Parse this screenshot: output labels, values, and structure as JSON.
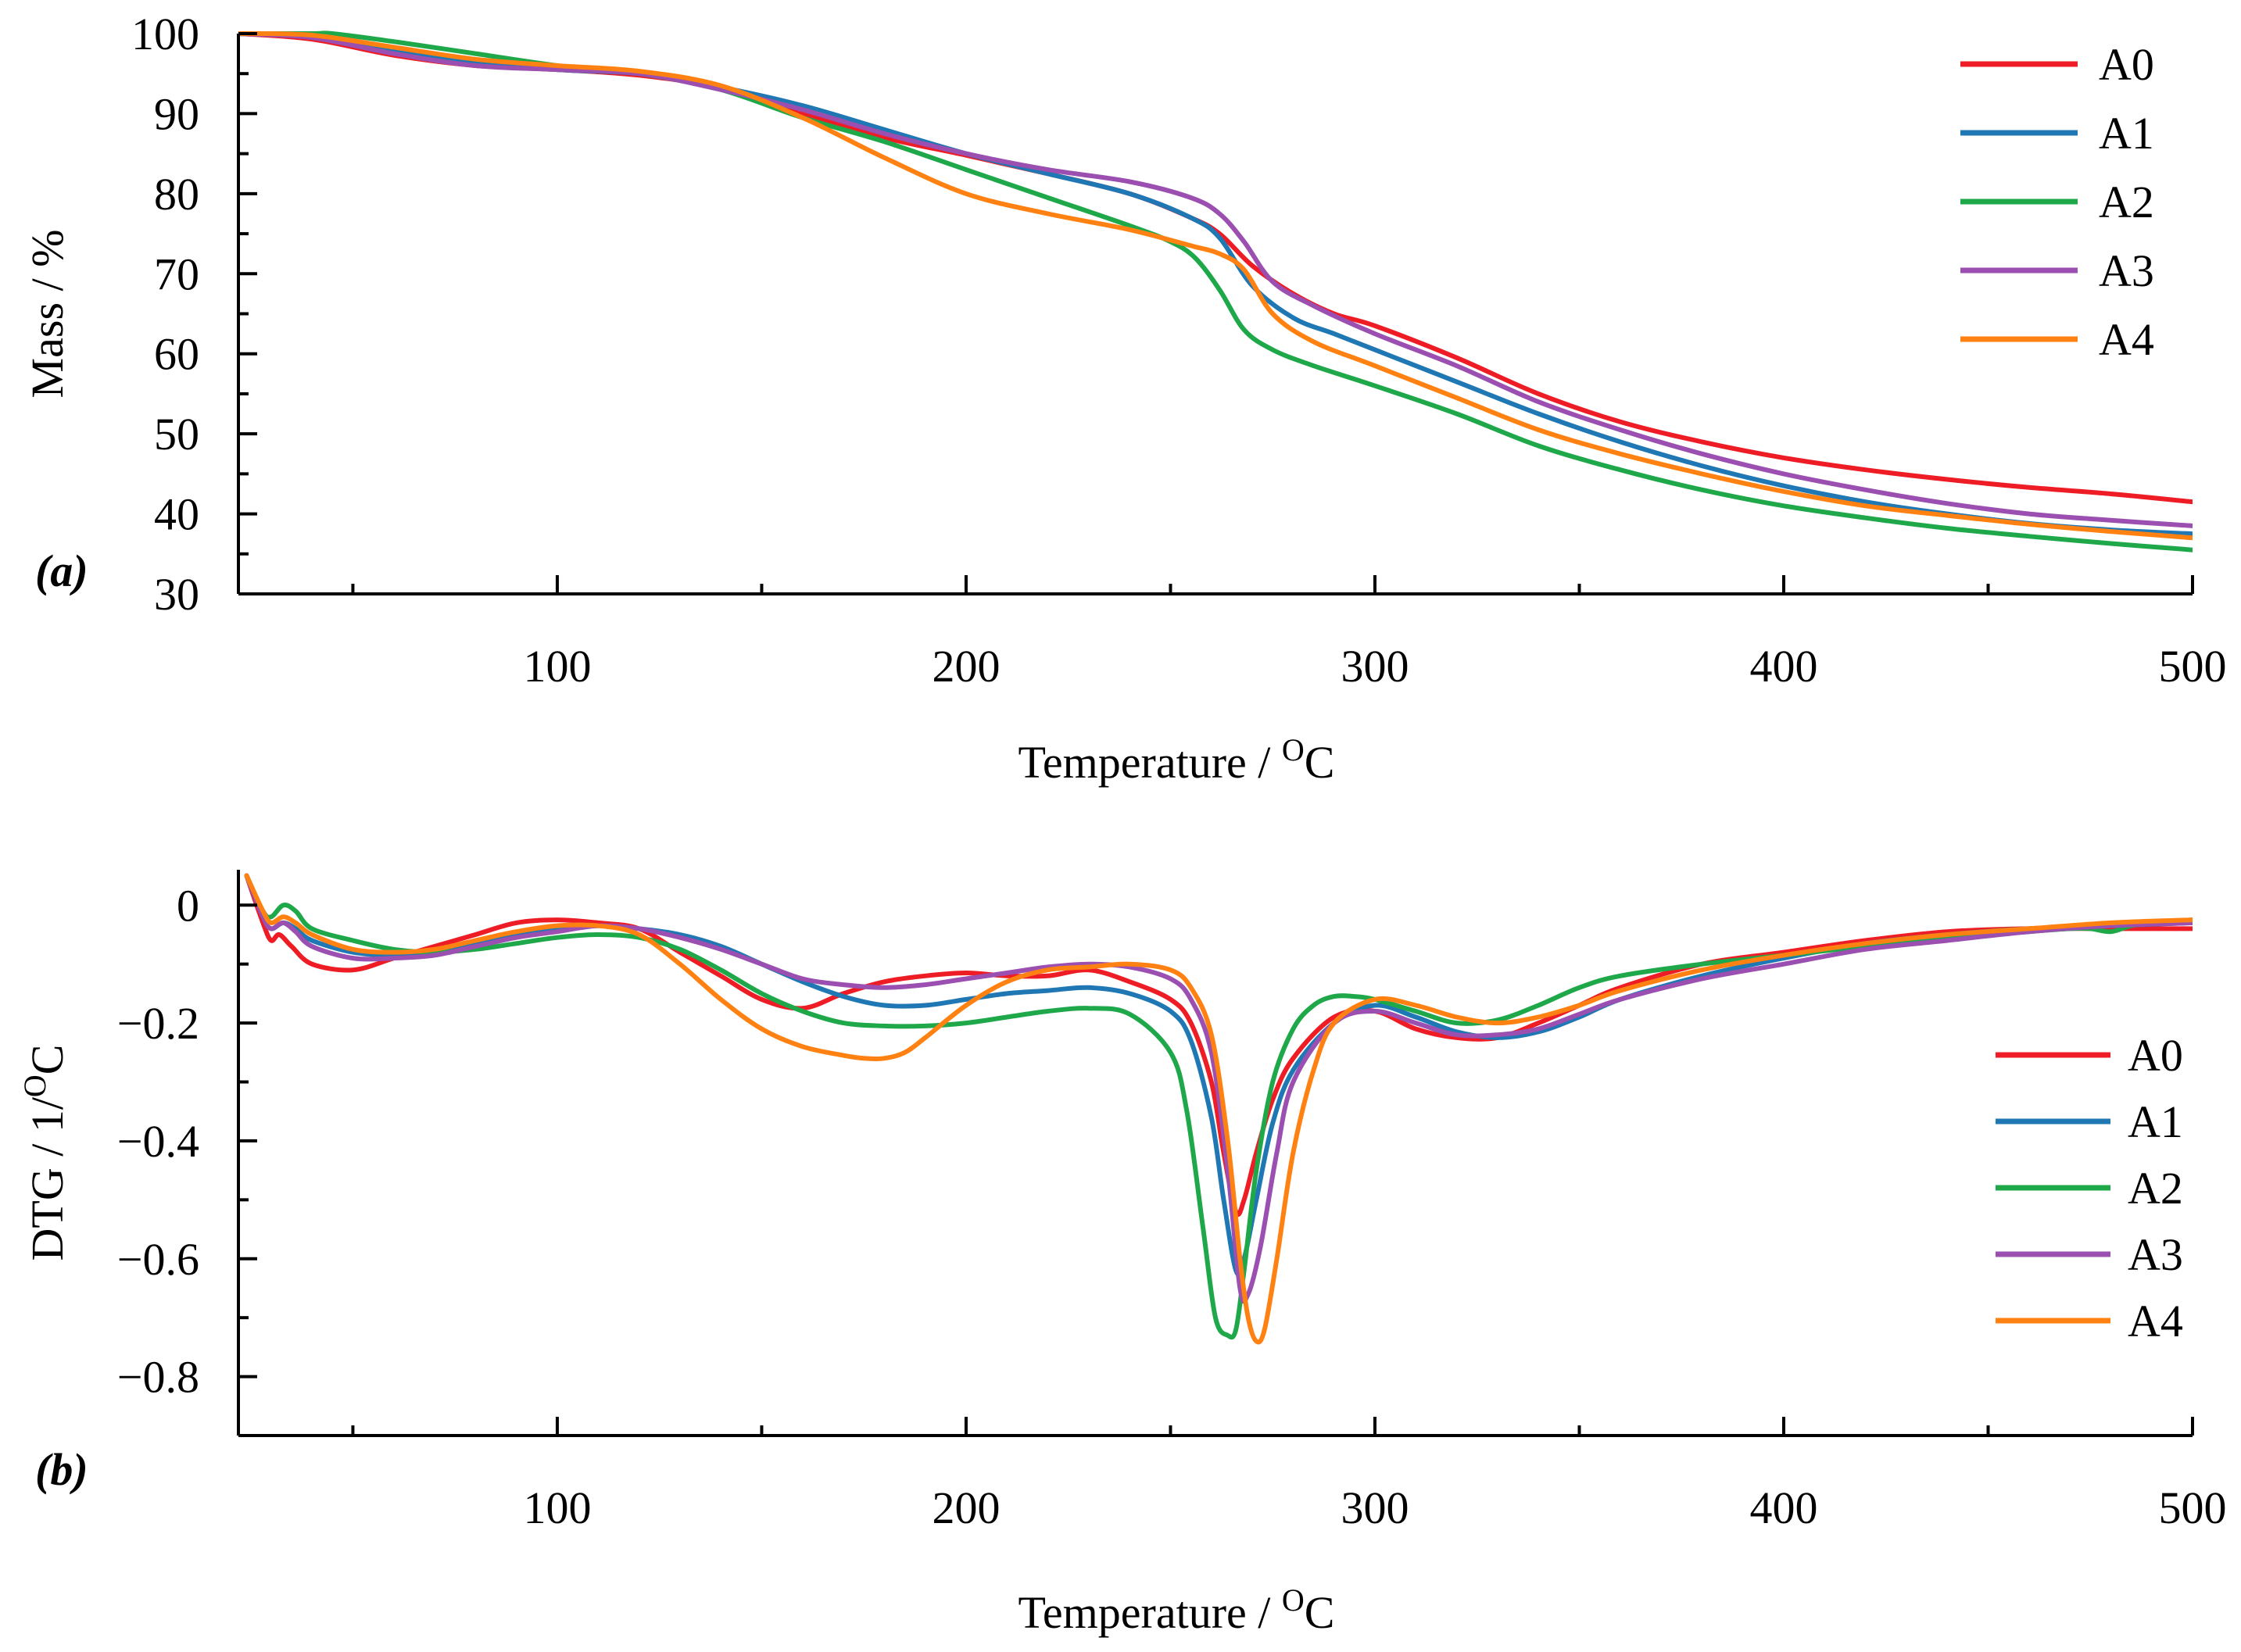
{
  "colors": {
    "A0": "#ee1c25",
    "A1": "#1f77b4",
    "A2": "#1fa84a",
    "A3": "#9b4fb0",
    "A4": "#ff8112"
  },
  "chart_data": [
    {
      "type": "line",
      "panel_label": "(a)",
      "xlabel": "Temperature / ",
      "xlabel_sup": "O",
      "xlabel_unit": "C",
      "ylabel": "Mass / %",
      "xlim": [
        22,
        500
      ],
      "ylim": [
        30,
        100
      ],
      "xticks": [
        100,
        200,
        300,
        400,
        500
      ],
      "xminor": [
        50,
        150,
        250,
        350,
        450
      ],
      "yticks": [
        30,
        40,
        50,
        60,
        70,
        80,
        90,
        100
      ],
      "ytick_labels": [
        "30",
        "40",
        "50",
        "60",
        "70",
        "80",
        "90",
        "100"
      ],
      "yminor": [
        35,
        45,
        55,
        65,
        75,
        85,
        95
      ],
      "legend": "top-right",
      "series": [
        {
          "name": "A0",
          "x": [
            22,
            40,
            60,
            80,
            100,
            120,
            140,
            160,
            180,
            200,
            220,
            240,
            255,
            262,
            270,
            280,
            290,
            300,
            320,
            340,
            360,
            380,
            400,
            420,
            440,
            460,
            480,
            500
          ],
          "y": [
            100,
            99.3,
            97.3,
            96,
            95.5,
            94.8,
            93.2,
            90,
            87,
            84.8,
            82.5,
            80,
            77,
            75,
            71,
            67.5,
            65,
            63.5,
            59.5,
            55,
            51.5,
            49,
            47,
            45.5,
            44.3,
            43.3,
            42.5,
            41.5
          ]
        },
        {
          "name": "A1",
          "x": [
            22,
            40,
            60,
            80,
            100,
            120,
            140,
            160,
            180,
            200,
            220,
            240,
            255,
            262,
            270,
            280,
            290,
            300,
            320,
            340,
            360,
            380,
            400,
            420,
            440,
            460,
            480,
            500
          ],
          "y": [
            100,
            99.6,
            98,
            96.5,
            95.5,
            95,
            93.3,
            91,
            88,
            85,
            82.5,
            80,
            77,
            74.5,
            68.5,
            64.5,
            62.5,
            60.5,
            56.5,
            52.5,
            49,
            46,
            43.5,
            41.5,
            40,
            38.8,
            38,
            37.5
          ]
        },
        {
          "name": "A2",
          "x": [
            22,
            40,
            45,
            60,
            80,
            100,
            120,
            140,
            160,
            180,
            200,
            220,
            240,
            250,
            256,
            262,
            268,
            275,
            285,
            300,
            320,
            340,
            360,
            380,
            400,
            420,
            440,
            460,
            480,
            500
          ],
          "y": [
            100,
            100,
            100,
            99,
            97.5,
            96,
            95,
            93,
            89.5,
            86.5,
            83,
            79.5,
            76,
            74,
            72,
            68,
            63,
            60.5,
            58.5,
            56,
            52.5,
            48.5,
            45.5,
            43,
            41,
            39.5,
            38.2,
            37.2,
            36.3,
            35.5
          ]
        },
        {
          "name": "A3",
          "x": [
            22,
            40,
            60,
            80,
            100,
            120,
            140,
            160,
            180,
            200,
            220,
            240,
            255,
            262,
            268,
            275,
            285,
            300,
            320,
            340,
            360,
            380,
            400,
            420,
            440,
            460,
            480,
            500
          ],
          "y": [
            100,
            99.5,
            97.5,
            96,
            95.5,
            95,
            93,
            90.5,
            87.5,
            85,
            83,
            81.5,
            79.5,
            77.5,
            74,
            69,
            66,
            62.5,
            58.5,
            54,
            50.5,
            47.5,
            45,
            43,
            41.3,
            40,
            39.2,
            38.5
          ]
        },
        {
          "name": "A4",
          "x": [
            22,
            40,
            60,
            80,
            100,
            120,
            140,
            160,
            180,
            200,
            220,
            240,
            255,
            262,
            268,
            275,
            285,
            300,
            320,
            340,
            360,
            380,
            400,
            420,
            440,
            460,
            480,
            500
          ],
          "y": [
            100,
            99.8,
            98.3,
            96.8,
            96,
            95.3,
            93.5,
            89.5,
            84.5,
            80,
            77.5,
            75.5,
            73.5,
            72.5,
            70.5,
            65,
            61.5,
            58.5,
            54.5,
            50.5,
            47.5,
            45,
            42.8,
            41,
            39.8,
            38.7,
            37.8,
            37
          ]
        }
      ]
    },
    {
      "type": "line",
      "panel_label": "(b)",
      "xlabel": "Temperature / ",
      "xlabel_sup": "O",
      "xlabel_unit": "C",
      "ylabel": "DTG / 1/",
      "ylabel_sup": "O",
      "ylabel_unit": "C",
      "xlim": [
        22,
        500
      ],
      "ylim": [
        -0.9,
        0.06
      ],
      "xticks": [
        100,
        200,
        300,
        400,
        500
      ],
      "xminor": [
        50,
        150,
        250,
        350,
        450
      ],
      "yticks": [
        0,
        -0.2,
        -0.4,
        -0.6,
        -0.8
      ],
      "ytick_labels": [
        "0",
        "−0.2",
        "−0.4",
        "−0.6",
        "−0.8"
      ],
      "yminor": [
        -0.1,
        -0.3,
        -0.5,
        -0.7,
        -0.9
      ],
      "legend": "right",
      "series": [
        {
          "name": "A0",
          "x": [
            24,
            28,
            30,
            32,
            35,
            40,
            50,
            60,
            70,
            80,
            90,
            100,
            110,
            120,
            130,
            140,
            150,
            160,
            170,
            180,
            190,
            200,
            210,
            220,
            230,
            240,
            250,
            255,
            260,
            263,
            266,
            268,
            271,
            275,
            280,
            290,
            300,
            310,
            320,
            330,
            340,
            350,
            360,
            380,
            400,
            420,
            440,
            460,
            480,
            500
          ],
          "y": [
            0.05,
            -0.03,
            -0.06,
            -0.05,
            -0.07,
            -0.1,
            -0.11,
            -0.09,
            -0.07,
            -0.05,
            -0.03,
            -0.025,
            -0.03,
            -0.04,
            -0.08,
            -0.12,
            -0.16,
            -0.175,
            -0.15,
            -0.13,
            -0.12,
            -0.115,
            -0.12,
            -0.12,
            -0.11,
            -0.13,
            -0.16,
            -0.2,
            -0.3,
            -0.42,
            -0.52,
            -0.5,
            -0.42,
            -0.33,
            -0.26,
            -0.19,
            -0.18,
            -0.21,
            -0.225,
            -0.225,
            -0.2,
            -0.17,
            -0.14,
            -0.1,
            -0.08,
            -0.06,
            -0.045,
            -0.04,
            -0.04,
            -0.04
          ]
        },
        {
          "name": "A1",
          "x": [
            24,
            28,
            30,
            33,
            36,
            40,
            50,
            60,
            70,
            80,
            90,
            100,
            110,
            120,
            130,
            140,
            150,
            160,
            170,
            180,
            190,
            200,
            210,
            220,
            230,
            240,
            250,
            255,
            260,
            263,
            266,
            268,
            271,
            275,
            280,
            290,
            300,
            310,
            320,
            330,
            340,
            350,
            360,
            380,
            400,
            420,
            440,
            460,
            480,
            500
          ],
          "y": [
            0.05,
            -0.02,
            -0.04,
            -0.03,
            -0.04,
            -0.06,
            -0.08,
            -0.085,
            -0.08,
            -0.065,
            -0.05,
            -0.04,
            -0.035,
            -0.04,
            -0.05,
            -0.07,
            -0.1,
            -0.13,
            -0.155,
            -0.17,
            -0.17,
            -0.16,
            -0.15,
            -0.145,
            -0.14,
            -0.15,
            -0.18,
            -0.23,
            -0.36,
            -0.5,
            -0.62,
            -0.6,
            -0.5,
            -0.37,
            -0.28,
            -0.2,
            -0.17,
            -0.19,
            -0.215,
            -0.225,
            -0.215,
            -0.19,
            -0.16,
            -0.12,
            -0.09,
            -0.065,
            -0.05,
            -0.04,
            -0.035,
            -0.03
          ]
        },
        {
          "name": "A2",
          "x": [
            24,
            28,
            30,
            33,
            36,
            40,
            50,
            60,
            70,
            80,
            90,
            100,
            110,
            120,
            130,
            140,
            150,
            160,
            170,
            180,
            190,
            200,
            210,
            220,
            230,
            240,
            250,
            254,
            258,
            261,
            264,
            266,
            268,
            271,
            275,
            280,
            285,
            290,
            295,
            300,
            310,
            320,
            330,
            340,
            350,
            360,
            380,
            400,
            420,
            440,
            460,
            470,
            475,
            480,
            485,
            490,
            500
          ],
          "y": [
            0.05,
            -0.01,
            -0.02,
            0.0,
            -0.01,
            -0.04,
            -0.06,
            -0.075,
            -0.08,
            -0.075,
            -0.065,
            -0.055,
            -0.05,
            -0.055,
            -0.075,
            -0.11,
            -0.15,
            -0.18,
            -0.2,
            -0.205,
            -0.205,
            -0.2,
            -0.19,
            -0.18,
            -0.175,
            -0.185,
            -0.25,
            -0.35,
            -0.55,
            -0.7,
            -0.73,
            -0.72,
            -0.62,
            -0.45,
            -0.3,
            -0.21,
            -0.17,
            -0.155,
            -0.155,
            -0.16,
            -0.18,
            -0.2,
            -0.195,
            -0.17,
            -0.14,
            -0.12,
            -0.1,
            -0.085,
            -0.07,
            -0.055,
            -0.045,
            -0.04,
            -0.04,
            -0.045,
            -0.035,
            -0.03,
            -0.025
          ]
        },
        {
          "name": "A3",
          "x": [
            24,
            28,
            30,
            33,
            36,
            40,
            50,
            60,
            70,
            80,
            90,
            100,
            110,
            120,
            130,
            140,
            150,
            160,
            170,
            180,
            190,
            200,
            210,
            220,
            230,
            240,
            250,
            255,
            260,
            264,
            267,
            269,
            272,
            276,
            280,
            290,
            300,
            310,
            320,
            330,
            340,
            350,
            360,
            380,
            400,
            420,
            440,
            460,
            480,
            500
          ],
          "y": [
            0.05,
            -0.02,
            -0.04,
            -0.03,
            -0.045,
            -0.07,
            -0.09,
            -0.09,
            -0.085,
            -0.07,
            -0.055,
            -0.045,
            -0.035,
            -0.04,
            -0.055,
            -0.075,
            -0.1,
            -0.125,
            -0.135,
            -0.14,
            -0.135,
            -0.125,
            -0.115,
            -0.105,
            -0.1,
            -0.105,
            -0.125,
            -0.16,
            -0.25,
            -0.45,
            -0.65,
            -0.66,
            -0.58,
            -0.42,
            -0.3,
            -0.2,
            -0.18,
            -0.2,
            -0.22,
            -0.22,
            -0.21,
            -0.185,
            -0.16,
            -0.125,
            -0.1,
            -0.075,
            -0.06,
            -0.045,
            -0.035,
            -0.03
          ]
        },
        {
          "name": "A4",
          "x": [
            24,
            28,
            30,
            33,
            36,
            40,
            50,
            60,
            70,
            80,
            90,
            100,
            110,
            120,
            130,
            140,
            150,
            160,
            170,
            175,
            180,
            185,
            190,
            200,
            210,
            220,
            230,
            240,
            250,
            255,
            260,
            264,
            267,
            269,
            271,
            273,
            276,
            280,
            285,
            290,
            300,
            310,
            320,
            330,
            340,
            350,
            360,
            380,
            400,
            420,
            440,
            460,
            480,
            500
          ],
          "y": [
            0.05,
            -0.01,
            -0.03,
            -0.02,
            -0.03,
            -0.05,
            -0.075,
            -0.08,
            -0.075,
            -0.06,
            -0.045,
            -0.035,
            -0.035,
            -0.05,
            -0.1,
            -0.16,
            -0.21,
            -0.24,
            -0.255,
            -0.26,
            -0.26,
            -0.25,
            -0.225,
            -0.17,
            -0.13,
            -0.11,
            -0.105,
            -0.1,
            -0.11,
            -0.14,
            -0.22,
            -0.4,
            -0.6,
            -0.7,
            -0.74,
            -0.72,
            -0.6,
            -0.42,
            -0.28,
            -0.2,
            -0.16,
            -0.17,
            -0.19,
            -0.2,
            -0.19,
            -0.17,
            -0.145,
            -0.11,
            -0.085,
            -0.065,
            -0.05,
            -0.04,
            -0.03,
            -0.025
          ]
        }
      ]
    }
  ]
}
